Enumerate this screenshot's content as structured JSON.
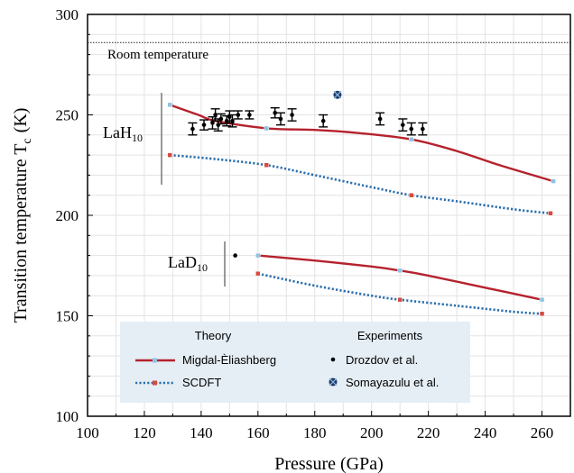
{
  "chart_data": {
    "type": "line",
    "xlabel": "Pressure (GPa)",
    "ylabel_main": "Transition temperature T",
    "ylabel_sub": "c",
    "ylabel_unit": "(K)",
    "xlim": [
      100,
      270
    ],
    "ylim": [
      100,
      300
    ],
    "xticks": [
      "100",
      "120",
      "140",
      "160",
      "180",
      "200",
      "220",
      "240",
      "260"
    ],
    "yticks": [
      "100",
      "150",
      "200",
      "250",
      "300"
    ],
    "grid": true,
    "room_temperature": {
      "label": "Room temperature",
      "value": 286
    },
    "group_labels": [
      {
        "main": "LaH",
        "sub": "10"
      },
      {
        "main": "LaD",
        "sub": "10"
      }
    ],
    "series": [
      {
        "name": "Migdal-Èliashberg",
        "compound": "LaH10",
        "style": "solid",
        "color": "#b5222d",
        "marker_color": "#8fc3e3",
        "x": [
          129,
          139,
          145,
          163,
          180,
          195,
          214,
          230,
          245,
          264
        ],
        "y": [
          255,
          250,
          247,
          243.3,
          242.5,
          241,
          237.8,
          232,
          225,
          217
        ]
      },
      {
        "name": "SCDFT",
        "compound": "LaH10",
        "style": "dotted",
        "color": "#2b6fad",
        "marker_color": "#d64a3f",
        "x": [
          129,
          145,
          163,
          180,
          200,
          214,
          230,
          250,
          263
        ],
        "y": [
          230,
          228,
          225,
          220,
          214,
          210,
          207,
          203,
          201
        ]
      },
      {
        "name": "Migdal-Èliashberg",
        "compound": "LaD10",
        "style": "solid",
        "color": "#b5222d",
        "marker_color": "#8fc3e3",
        "x": [
          160,
          180,
          200,
          210,
          220,
          240,
          260
        ],
        "y": [
          180,
          177.5,
          174.5,
          172.5,
          170,
          164,
          158
        ]
      },
      {
        "name": "SCDFT",
        "compound": "LaD10",
        "style": "dotted",
        "color": "#2b6fad",
        "marker_color": "#d64a3f",
        "x": [
          160,
          180,
          200,
          210,
          230,
          250,
          260
        ],
        "y": [
          171,
          165,
          160,
          158,
          155,
          152,
          151
        ]
      }
    ],
    "experiments": {
      "drozdov": {
        "name": "Drozdov et al.",
        "color": "#000000",
        "points": [
          {
            "x": 137,
            "y": 243,
            "err": 3
          },
          {
            "x": 141,
            "y": 245,
            "err": 2.5
          },
          {
            "x": 144,
            "y": 246,
            "err": 3
          },
          {
            "x": 145,
            "y": 250,
            "err": 3
          },
          {
            "x": 146,
            "y": 245,
            "err": 3
          },
          {
            "x": 147,
            "y": 248,
            "err": 2.5
          },
          {
            "x": 149,
            "y": 247,
            "err": 2.5
          },
          {
            "x": 150,
            "y": 249,
            "err": 3
          },
          {
            "x": 151,
            "y": 247,
            "err": 3
          },
          {
            "x": 153,
            "y": 250,
            "err": 2
          },
          {
            "x": 157,
            "y": 250,
            "err": 2
          },
          {
            "x": 166,
            "y": 251,
            "err": 2.5
          },
          {
            "x": 168,
            "y": 248,
            "err": 3
          },
          {
            "x": 172,
            "y": 250,
            "err": 3
          },
          {
            "x": 183,
            "y": 247,
            "err": 3
          },
          {
            "x": 203,
            "y": 248,
            "err": 3
          },
          {
            "x": 211,
            "y": 245,
            "err": 3
          },
          {
            "x": 214,
            "y": 243,
            "err": 3
          },
          {
            "x": 218,
            "y": 243,
            "err": 3
          },
          {
            "x": 152,
            "y": 180,
            "err": 0
          }
        ]
      },
      "somayazulu": {
        "name": "Somayazulu et al.",
        "color": "#1f3b6b",
        "points": [
          {
            "x": 188,
            "y": 260
          }
        ]
      }
    },
    "legend": {
      "theory_title": "Theory",
      "experiments_title": "Experiments",
      "entries": {
        "me": "Migdal-Èliashberg",
        "scdft": "SCDFT",
        "drozdov": "Drozdov et al.",
        "somayazulu": "Somayazulu et al."
      },
      "background": "#e5eef5",
      "placement": "lower-center"
    }
  }
}
